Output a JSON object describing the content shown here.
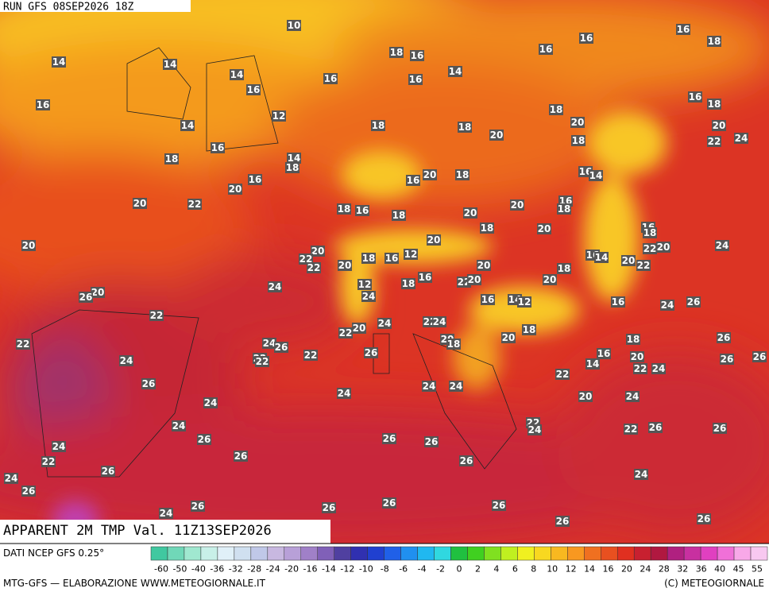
{
  "header": {
    "run": "RUN GFS 08SEP2026 18Z"
  },
  "footer": {
    "title": "APPARENT 2M TMP Val. 11Z13SEP2026",
    "source": "DATI NCEP GFS 0.25°",
    "credit": "MTG-GFS — ELABORAZIONE WWW.METEOGIORNALE.IT",
    "copyright": "(C) METEOGIORNALE"
  },
  "colorbar": {
    "labels": [
      -60,
      -50,
      -40,
      -36,
      -32,
      -28,
      -24,
      -20,
      -16,
      -14,
      -12,
      -10,
      -8,
      -6,
      -4,
      -2,
      0,
      2,
      4,
      6,
      8,
      10,
      12,
      14,
      16,
      20,
      24,
      28,
      32,
      36,
      40,
      45,
      55
    ]
  },
  "map_labels": [
    10,
    14,
    14,
    14,
    16,
    16,
    18,
    16,
    16,
    14,
    16,
    16,
    16,
    18,
    16,
    12,
    14,
    16,
    18,
    14,
    18,
    18,
    18,
    20,
    18,
    20,
    18,
    16,
    18,
    20,
    22,
    24,
    20,
    16,
    20,
    22,
    18,
    16,
    16,
    20,
    18,
    18,
    20,
    20,
    16,
    18,
    16,
    14,
    18,
    20,
    16,
    18,
    20,
    20,
    22,
    22,
    20,
    18,
    16,
    12,
    20,
    20,
    18,
    16,
    14,
    20,
    22,
    20,
    22,
    24,
    24,
    12,
    18,
    16,
    22,
    20,
    20,
    20,
    26,
    24,
    16,
    14,
    12,
    16,
    24,
    26,
    22,
    24,
    22,
    24,
    18,
    20,
    22,
    22,
    24,
    26,
    22,
    22,
    22,
    26,
    20,
    18,
    20,
    18,
    26,
    24,
    16,
    14,
    20,
    22,
    24,
    26,
    26,
    22,
    26,
    24,
    24,
    24,
    20,
    24,
    24,
    22,
    24,
    24,
    26,
    22,
    26,
    26,
    24,
    26,
    26,
    26,
    22,
    26,
    26,
    24,
    26,
    24,
    26,
    26,
    26,
    26,
    24,
    26,
    26
  ]
}
